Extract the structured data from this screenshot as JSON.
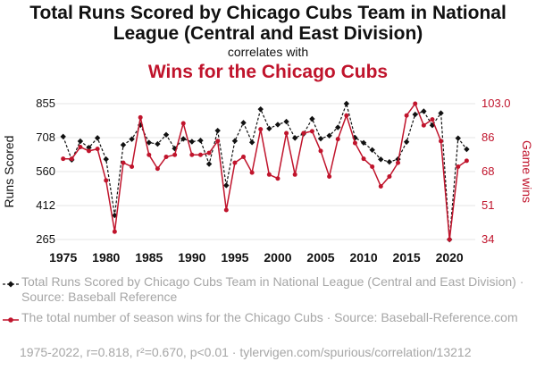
{
  "chart_data": {
    "type": "line",
    "title": "Total Runs Scored by Chicago Cubs Team in National League (Central and East Division)",
    "title_line1": "Total Runs Scored by Chicago Cubs Team in National",
    "title_line2": "League (Central and East Division)",
    "subtitle": "correlates with",
    "title2": "Wins for the Chicago Cubs",
    "ylabel_left": "Runs Scored",
    "ylabel_right": "Game wins",
    "x": [
      1975,
      1976,
      1977,
      1978,
      1979,
      1980,
      1981,
      1982,
      1983,
      1984,
      1985,
      1986,
      1987,
      1988,
      1989,
      1990,
      1991,
      1992,
      1993,
      1994,
      1995,
      1996,
      1997,
      1998,
      1999,
      2000,
      2001,
      2002,
      2003,
      2004,
      2005,
      2006,
      2007,
      2008,
      2009,
      2010,
      2011,
      2012,
      2013,
      2014,
      2015,
      2016,
      2017,
      2018,
      2019,
      2020,
      2021,
      2022
    ],
    "x_ticks": [
      "1975",
      "1980",
      "1985",
      "1990",
      "1995",
      "2000",
      "2005",
      "2010",
      "2015",
      "2020"
    ],
    "x_range": [
      1974.2,
      2023.0
    ],
    "y_left_ticks": [
      "855",
      "708",
      "560",
      "412",
      "265"
    ],
    "y_left_range": [
      265,
      855
    ],
    "y_right_ticks": [
      "103.0",
      "86",
      "68",
      "51",
      "34"
    ],
    "y_right_range": [
      34,
      103
    ],
    "series": [
      {
        "name": "Total Runs Scored by Chicago Cubs Team in National League (Central and East Division)",
        "axis": "left",
        "color": "#111111",
        "style": "dashed",
        "marker": "diamond",
        "values": [
          712,
          611,
          692,
          664,
          706,
          614,
          370,
          676,
          701,
          762,
          686,
          680,
          720,
          660,
          702,
          690,
          695,
          593,
          738,
          500,
          693,
          772,
          687,
          831,
          747,
          764,
          777,
          706,
          724,
          789,
          703,
          716,
          752,
          855,
          707,
          685,
          654,
          613,
          602,
          614,
          689,
          808,
          822,
          761,
          814,
          265,
          705,
          657
        ]
      },
      {
        "name": "The total number of season wins for the Chicago Cubs",
        "axis": "right",
        "color": "#c0142c",
        "style": "solid",
        "marker": "circle",
        "values": [
          75,
          75,
          81,
          79,
          80,
          64,
          38,
          73,
          71,
          96,
          77,
          70,
          76,
          77,
          93,
          77,
          77,
          78,
          84,
          49,
          73,
          76,
          68,
          90,
          67,
          65,
          88,
          67,
          88,
          89,
          79,
          66,
          85,
          97,
          83,
          75,
          71,
          61,
          66,
          73,
          97,
          103,
          92,
          95,
          84,
          34,
          71,
          74
        ]
      }
    ]
  },
  "legend": {
    "item1": "Total Runs Scored by Chicago Cubs Team in National League (Central and East Division) · Source: Baseball Reference",
    "item2": "The total number of season wins for the Chicago Cubs · Source: Baseball-Reference.com"
  },
  "footer": "1975-2022, r=0.818, r²=0.670, p<0.01 · tylervigen.com/spurious/correlation/13212"
}
